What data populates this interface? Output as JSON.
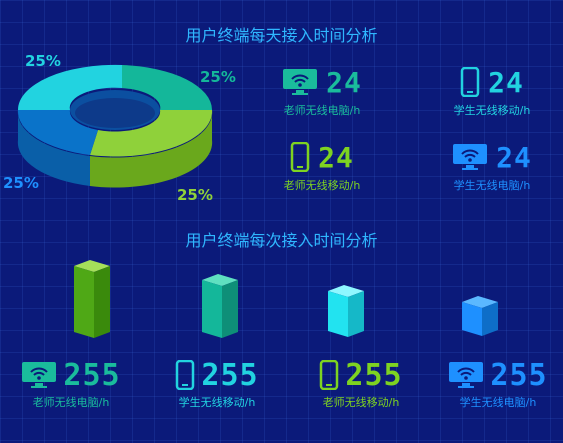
{
  "titles": {
    "daily": "用户终端每天接入时间分析",
    "each": "用户终端每次接入时间分析"
  },
  "colors": {
    "green": "#7ed321",
    "teal": "#1abc9c",
    "cyan": "#22e3f0",
    "blue": "#1e90ff"
  },
  "donut": {
    "segments": [
      {
        "percent": "25%",
        "color": "#22d3e0"
      },
      {
        "percent": "25%",
        "color": "#14b79a"
      },
      {
        "percent": "25%",
        "color": "#8fd13a"
      },
      {
        "percent": "25%",
        "color": "#0a73c9"
      }
    ]
  },
  "daily_stats": [
    {
      "icon": "monitor-wifi-icon",
      "value": "24",
      "label": "老师无线电脑/h",
      "color": "#1abc9c"
    },
    {
      "icon": "phone-icon",
      "value": "24",
      "label": "学生无线移动/h",
      "color": "#22d3e0"
    },
    {
      "icon": "phone-icon",
      "value": "24",
      "label": "老师无线移动/h",
      "color": "#7ed321"
    },
    {
      "icon": "monitor-wifi-icon",
      "value": "24",
      "label": "学生无线电脑/h",
      "color": "#1e90ff"
    }
  ],
  "each_stats": [
    {
      "icon": "monitor-wifi-icon",
      "value": "255",
      "label": "老师无线电脑/h",
      "color": "#1abc9c"
    },
    {
      "icon": "phone-icon",
      "value": "255",
      "label": "学生无线移动/h",
      "color": "#22d3e0"
    },
    {
      "icon": "phone-icon",
      "value": "255",
      "label": "老师无线移动/h",
      "color": "#7ed321"
    },
    {
      "icon": "monitor-wifi-icon",
      "value": "255",
      "label": "学生无线电脑/h",
      "color": "#1e90ff"
    }
  ]
}
